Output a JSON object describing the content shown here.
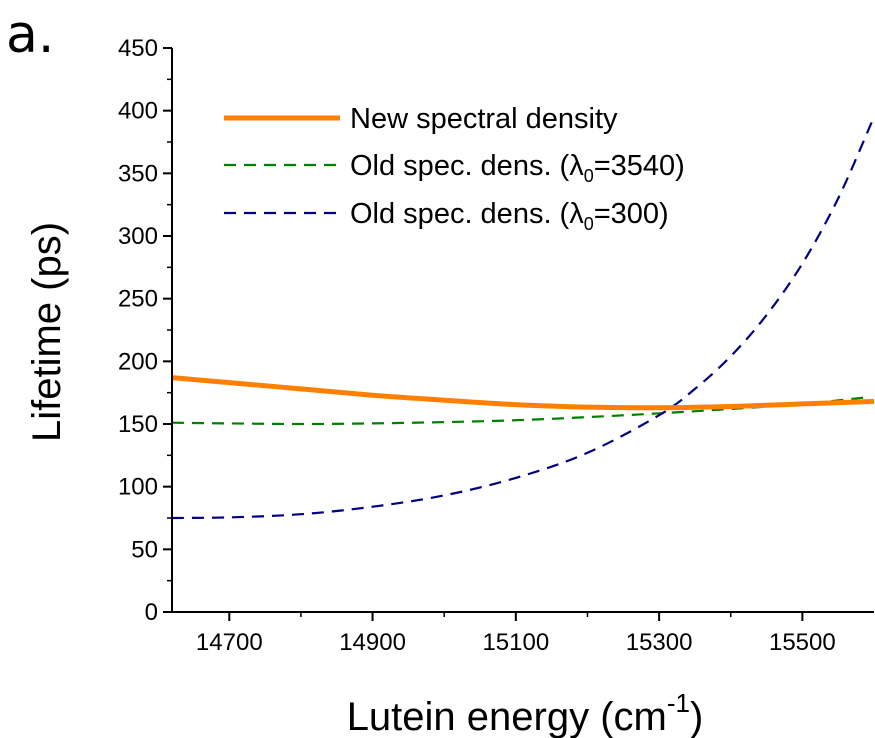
{
  "panel_label": "a.",
  "chart_data": {
    "type": "line",
    "xlabel": "Lutein energy (cm",
    "xlabel_sup": "-1",
    "xlabel_close": ")",
    "ylabel": "Lifetime (ps)",
    "xlim": [
      14620,
      15600
    ],
    "ylim": [
      0,
      450
    ],
    "x_ticks": [
      14700,
      14900,
      15100,
      15300,
      15500
    ],
    "y_ticks": [
      0,
      50,
      100,
      150,
      200,
      250,
      300,
      350,
      400,
      450
    ],
    "grid": false,
    "legend_position": "top-right",
    "series": [
      {
        "name": "New spectral density",
        "color": "#ff8000",
        "style": "solid",
        "x": [
          14620,
          14700,
          14800,
          14900,
          15000,
          15100,
          15200,
          15300,
          15400,
          15500,
          15600
        ],
        "y": [
          187,
          183,
          178,
          173,
          169,
          165.5,
          163.5,
          163,
          164,
          166,
          168
        ]
      },
      {
        "name": "Old spec. dens. (",
        "name_symbol": "λ",
        "name_sub": "0",
        "name_value": "=3540)",
        "color": "#008000",
        "style": "dashed",
        "x": [
          14620,
          14700,
          14800,
          14900,
          15000,
          15100,
          15200,
          15300,
          15400,
          15500,
          15585
        ],
        "y": [
          151,
          150.5,
          150,
          150.5,
          151.5,
          153,
          155.5,
          158.5,
          162,
          166,
          171
        ]
      },
      {
        "name": "Old spec. dens. (",
        "name_symbol": "λ",
        "name_sub": "0",
        "name_value": "=300)",
        "color": "#000080",
        "style": "dashed",
        "x": [
          14620,
          14700,
          14800,
          14900,
          15000,
          15100,
          15200,
          15300,
          15350,
          15400,
          15450,
          15500,
          15550,
          15600
        ],
        "y": [
          75,
          75.5,
          78,
          84,
          93,
          107,
          127,
          157,
          178,
          204,
          237,
          278,
          330,
          395
        ]
      }
    ]
  }
}
